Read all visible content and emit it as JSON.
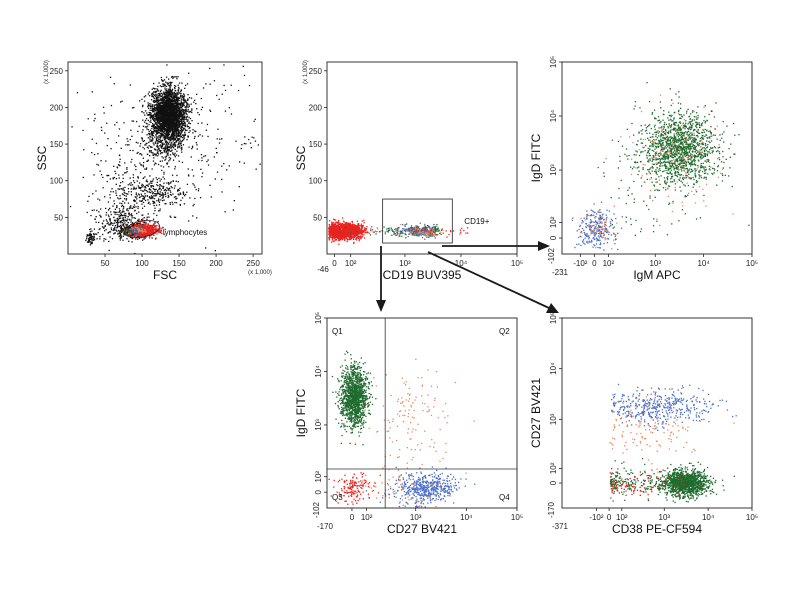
{
  "palette": {
    "black": "#111111",
    "red": "#e8231f",
    "green": "#1e6b2e",
    "orange": "#e88a5e",
    "blue": "#4a6fc9",
    "arrow": "#1a1a1a"
  },
  "chart_data": [
    {
      "id": "fsc-ssc",
      "type": "scatter",
      "xlabel": "FSC",
      "ylabel": "SSC",
      "x_multiplier": "(x 1,000)",
      "y_multiplier": "(x 1,000)",
      "xlim": [
        0,
        262
      ],
      "ylim": [
        0,
        262
      ],
      "xticks": [
        50,
        100,
        150,
        200,
        250
      ],
      "yticks": [
        50,
        100,
        150,
        200,
        250
      ],
      "xtick_labels": [
        "50",
        "100",
        "150",
        "200",
        "250"
      ],
      "ytick_labels": [
        "50",
        "100",
        "150",
        "200",
        "250"
      ],
      "populations": [
        {
          "color": "black",
          "center": [
            135,
            190
          ],
          "spread": [
            12,
            18
          ],
          "count": 2600
        },
        {
          "color": "black",
          "center": [
            125,
            150
          ],
          "spread": [
            15,
            15
          ],
          "count": 200
        },
        {
          "color": "black",
          "center": [
            115,
            85
          ],
          "spread": [
            25,
            12
          ],
          "count": 300
        },
        {
          "color": "black",
          "center": [
            70,
            45
          ],
          "spread": [
            18,
            12
          ],
          "count": 250
        },
        {
          "color": "black",
          "center": [
            30,
            22
          ],
          "spread": [
            3,
            4
          ],
          "count": 60
        },
        {
          "color": "black",
          "center": [
            150,
            150
          ],
          "spread": [
            70,
            60
          ],
          "count": 300
        },
        {
          "color": "black",
          "center": [
            70,
            110
          ],
          "spread": [
            25,
            50
          ],
          "count": 120
        },
        {
          "color": "black",
          "center": [
            90,
            33
          ],
          "spread": [
            12,
            5
          ],
          "count": 350
        },
        {
          "color": "red",
          "center": [
            102,
            33
          ],
          "spread": [
            9,
            4
          ],
          "count": 700
        },
        {
          "color": "green",
          "center": [
            87,
            32
          ],
          "spread": [
            5,
            3
          ],
          "count": 50
        },
        {
          "color": "blue",
          "center": [
            92,
            33
          ],
          "spread": [
            5,
            3
          ],
          "count": 30
        },
        {
          "color": "orange",
          "center": [
            97,
            35
          ],
          "spread": [
            5,
            3
          ],
          "count": 30
        }
      ],
      "gates": [
        {
          "name": "lymphocytes",
          "label": "lymphocytes",
          "shape": "ellipse",
          "center": [
            100,
            34
          ],
          "radii": [
            24,
            11
          ],
          "angle": -12
        }
      ]
    },
    {
      "id": "cd19-ssc",
      "type": "scatter",
      "xlabel": "CD19 BUV395",
      "ylabel": "SSC",
      "y_multiplier": "(x 1,000)",
      "x_scale": "biexponential",
      "xlim": [
        -46,
        100000
      ],
      "ylim": [
        0,
        262
      ],
      "xticks": [
        0,
        100,
        1000,
        10000,
        100000
      ],
      "yticks": [
        50,
        100,
        150,
        200,
        250
      ],
      "xtick_labels": [
        "0",
        "10²",
        "10³",
        "10⁴",
        "10⁵"
      ],
      "ytick_labels": [
        "50",
        "100",
        "150",
        "200",
        "250"
      ],
      "axis_min_label": "-46",
      "populations": [
        {
          "color": "red",
          "center": [
            60,
            32
          ],
          "spread": [
            55,
            5
          ],
          "count": 1800
        },
        {
          "color": "red",
          "center": [
            20,
            32
          ],
          "spread": [
            25,
            5
          ],
          "count": 300
        },
        {
          "color": "green",
          "center": [
            1800,
            32
          ],
          "spread": [
            1000,
            3.5
          ],
          "count": 300
        },
        {
          "color": "blue",
          "center": [
            1500,
            32
          ],
          "spread": [
            900,
            3.5
          ],
          "count": 150
        },
        {
          "color": "orange",
          "center": [
            1800,
            32
          ],
          "spread": [
            1000,
            3.5
          ],
          "count": 80
        },
        {
          "color": "red",
          "center": [
            2000,
            32
          ],
          "spread": [
            5000,
            4
          ],
          "count": 60
        }
      ],
      "gates": [
        {
          "name": "CD19+",
          "label": "CD19+",
          "shape": "rect",
          "x": [
            400,
            7000
          ],
          "y": [
            15,
            75
          ]
        }
      ]
    },
    {
      "id": "igm-igd",
      "type": "scatter",
      "xlabel": "IgM APC",
      "ylabel": "IgD FITC",
      "x_scale": "biexponential",
      "y_scale": "biexponential",
      "xlim": [
        -231,
        100000
      ],
      "ylim": [
        -102,
        100000
      ],
      "xticks": [
        -100,
        0,
        100,
        1000,
        10000,
        100000
      ],
      "yticks": [
        0,
        100,
        1000,
        10000,
        100000
      ],
      "xtick_labels": [
        "-10²",
        "0",
        "10²",
        "10³",
        "10⁴",
        "10⁵"
      ],
      "ytick_labels": [
        "0",
        "10²",
        "10³",
        "10⁴",
        "10⁵"
      ],
      "x_axis_min_label": "-231",
      "y_axis_min_label": "-102",
      "populations": [
        {
          "color": "green",
          "center": [
            3000,
            2500
          ],
          "spread": [
            0.4,
            0.35
          ],
          "count": 1400,
          "log": true
        },
        {
          "color": "orange",
          "center": [
            2500,
            2000
          ],
          "spread": [
            0.5,
            0.45
          ],
          "count": 150,
          "log": true
        },
        {
          "color": "blue",
          "center": [
            10,
            60
          ],
          "spread": [
            70,
            60
          ],
          "count": 250
        },
        {
          "color": "orange",
          "center": [
            25,
            70
          ],
          "spread": [
            60,
            50
          ],
          "count": 60
        },
        {
          "color": "green",
          "center": [
            500,
            200
          ],
          "spread": [
            0.7,
            0.6
          ],
          "count": 60,
          "log": true
        }
      ],
      "gates": []
    },
    {
      "id": "cd27-igd",
      "type": "scatter",
      "xlabel": "CD27 BV421",
      "ylabel": "IgD FITC",
      "x_scale": "biexponential",
      "y_scale": "biexponential",
      "xlim": [
        -170,
        100000
      ],
      "ylim": [
        -102,
        100000
      ],
      "xticks": [
        0,
        100,
        1000,
        10000,
        100000
      ],
      "yticks": [
        0,
        100,
        1000,
        10000,
        100000
      ],
      "xtick_labels": [
        "0",
        "10²",
        "10³",
        "10⁴",
        "10⁵"
      ],
      "ytick_labels": [
        "0",
        "10²",
        "10³",
        "10⁴",
        "10⁵"
      ],
      "x_axis_min_label": "-170",
      "y_axis_min_label": "-102",
      "quadrant_lines": {
        "x": 250,
        "y": 150
      },
      "quadrant_labels": [
        "Q1",
        "Q2",
        "Q3",
        "Q4"
      ],
      "populations": [
        {
          "color": "green",
          "center": [
            10,
            3500
          ],
          "spread": [
            45,
            0.28
          ],
          "count": 1300,
          "ylog": true
        },
        {
          "color": "orange",
          "center": [
            800,
            1200
          ],
          "spread": [
            0.4,
            0.45
          ],
          "count": 130,
          "log": true
        },
        {
          "color": "red",
          "center": [
            10,
            20
          ],
          "spread": [
            70,
            50
          ],
          "count": 140
        },
        {
          "color": "blue",
          "center": [
            1500,
            30
          ],
          "spread": [
            0.3,
            50
          ],
          "count": 500,
          "xlog": true
        },
        {
          "color": "orange",
          "center": [
            400,
            20
          ],
          "spread": [
            0.5,
            60
          ],
          "count": 60,
          "xlog": true
        }
      ],
      "gates": []
    },
    {
      "id": "cd38-cd27",
      "type": "scatter",
      "xlabel": "CD38 PE-CF594",
      "ylabel": "CD27 BV421",
      "x_scale": "biexponential",
      "y_scale": "biexponential",
      "xlim": [
        -371,
        100000
      ],
      "ylim": [
        -170,
        100000
      ],
      "xticks": [
        -100,
        0,
        100,
        1000,
        10000,
        100000
      ],
      "yticks": [
        0,
        100,
        1000,
        10000,
        100000
      ],
      "xtick_labels": [
        "-10²",
        "0",
        "10²",
        "10³",
        "10⁴",
        "10⁵"
      ],
      "ytick_labels": [
        "0",
        "10²",
        "10³",
        "10⁴",
        "10⁵"
      ],
      "x_axis_min_label": "-371",
      "y_axis_min_label": "-170",
      "populations": [
        {
          "color": "green",
          "center": [
            3000,
            5
          ],
          "spread": [
            0.25,
            45
          ],
          "count": 1200,
          "xlog": true
        },
        {
          "color": "green",
          "center": [
            300,
            5
          ],
          "spread": [
            0.8,
            45
          ],
          "count": 250,
          "xlog": true
        },
        {
          "color": "blue",
          "center": [
            700,
            1800
          ],
          "spread": [
            0.7,
            0.18
          ],
          "count": 420,
          "log": true
        },
        {
          "color": "orange",
          "center": [
            500,
            600
          ],
          "spread": [
            0.6,
            0.3
          ],
          "count": 120,
          "log": true
        },
        {
          "color": "red",
          "center": [
            200,
            5
          ],
          "spread": [
            0.8,
            45
          ],
          "count": 90,
          "xlog": true
        }
      ],
      "gates": []
    }
  ]
}
